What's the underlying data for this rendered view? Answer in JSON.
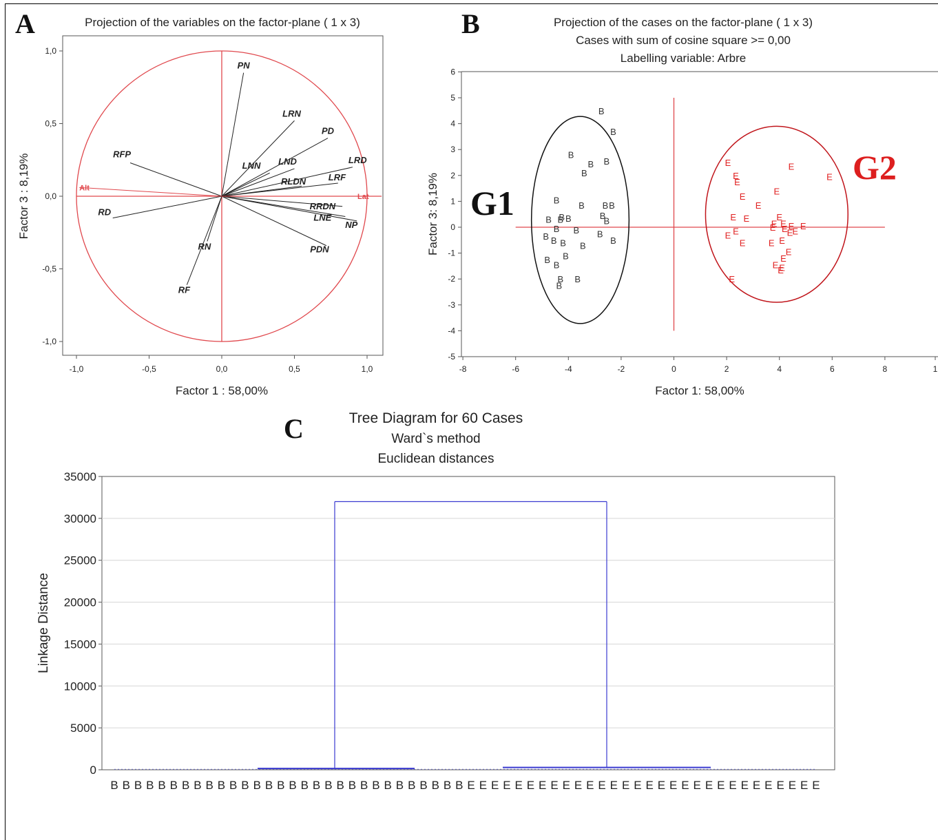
{
  "panels": {
    "a": {
      "letter": "A",
      "title": "Projection of the variables on the factor-plane (  1 x   3)",
      "xlabel": "Factor 1 : 58,00%",
      "ylabel": "Factor 3 :  8,19%",
      "x_ticks": [
        "-1,0",
        "-0,5",
        "0,0",
        "0,5",
        "1,0"
      ],
      "y_ticks": [
        "1,0",
        "0,5",
        "0,0",
        "-0,5",
        "-1,0"
      ]
    },
    "b": {
      "letter": "B",
      "title": "Projection of the cases on the factor-plane (  1 x   3)",
      "subtitle": "Cases with sum of cosine square >=  0,00",
      "subtitle2": "Labelling variable: Arbre",
      "xlabel": "Factor 1: 58,00%",
      "ylabel": "Factor 3:  8,19%",
      "group1": "G1",
      "group2": "G2",
      "x_ticks": [
        "-8",
        "-6",
        "-4",
        "-2",
        "0",
        "2",
        "4",
        "6",
        "8",
        "1"
      ],
      "y_ticks": [
        "6",
        "5",
        "4",
        "3",
        "2",
        "1",
        "0",
        "-1",
        "-2",
        "-3",
        "-4",
        "-5"
      ]
    },
    "c": {
      "letter": "C",
      "title": "Tree Diagram for 60 Cases",
      "subtitle": "Ward`s method",
      "subtitle2": "Euclidean distances",
      "ylabel": "Linkage Distance",
      "y_ticks": [
        "35000",
        "30000",
        "25000",
        "20000",
        "15000",
        "10000",
        "5000",
        "0"
      ]
    }
  },
  "chart_data": [
    {
      "type": "scatter",
      "title": "Projection of the variables on the factor-plane (  1 x   3)",
      "xlabel": "Factor 1 : 58,00%",
      "ylabel": "Factor 3 :  8,19%",
      "xlim": [
        -1.1,
        1.1
      ],
      "ylim": [
        -1.1,
        1.1
      ],
      "unit_circle": true,
      "vectors": [
        {
          "label": "PN",
          "x": 0.15,
          "y": 0.85
        },
        {
          "label": "LRN",
          "x": 0.5,
          "y": 0.52
        },
        {
          "label": "PD",
          "x": 0.73,
          "y": 0.4
        },
        {
          "label": "LRD",
          "x": 0.9,
          "y": 0.2
        },
        {
          "label": "LND",
          "x": 0.5,
          "y": 0.19
        },
        {
          "label": "LNN",
          "x": 0.33,
          "y": 0.16
        },
        {
          "label": "LRF",
          "x": 0.8,
          "y": 0.09
        },
        {
          "label": "RLDN",
          "x": 0.55,
          "y": 0.07
        },
        {
          "label": "RFP",
          "x": -0.63,
          "y": 0.23
        },
        {
          "label": "RD",
          "x": -0.75,
          "y": -0.15
        },
        {
          "label": "RRDN",
          "x": 0.83,
          "y": -0.07
        },
        {
          "label": "LNE",
          "x": 0.85,
          "y": -0.14
        },
        {
          "label": "NP",
          "x": 0.93,
          "y": -0.17
        },
        {
          "label": "PDN",
          "x": 0.72,
          "y": -0.34
        },
        {
          "label": "RN",
          "x": -0.1,
          "y": -0.31
        },
        {
          "label": "RF",
          "x": -0.24,
          "y": -0.61
        },
        {
          "label": "Alt",
          "x": -0.98,
          "y": 0.06,
          "supplementary": true
        },
        {
          "label": "Lat",
          "x": 1.0,
          "y": 0.0,
          "supplementary": true
        }
      ]
    },
    {
      "type": "scatter",
      "title": "Projection of the cases on the factor-plane (  1 x   3)",
      "xlabel": "Factor 1: 58,00%",
      "ylabel": "Factor 3:  8,19%",
      "xlim": [
        -8,
        10
      ],
      "ylim": [
        -5,
        6
      ],
      "series": [
        {
          "name": "B",
          "color": "#333333",
          "points": [
            [
              -2.75,
              4.5
            ],
            [
              -2.3,
              3.7
            ],
            [
              -3.9,
              2.8
            ],
            [
              -3.15,
              2.45
            ],
            [
              -2.55,
              2.55
            ],
            [
              -3.4,
              2.1
            ],
            [
              -4.45,
              1.05
            ],
            [
              -3.5,
              0.85
            ],
            [
              -2.6,
              0.85
            ],
            [
              -2.35,
              0.85
            ],
            [
              -4.25,
              0.4
            ],
            [
              -4.0,
              0.35
            ],
            [
              -4.3,
              0.3
            ],
            [
              -2.7,
              0.45
            ],
            [
              -2.55,
              0.25
            ],
            [
              -4.75,
              0.3
            ],
            [
              -4.45,
              -0.05
            ],
            [
              -3.7,
              -0.1
            ],
            [
              -2.8,
              -0.25
            ],
            [
              -4.85,
              -0.35
            ],
            [
              -4.55,
              -0.5
            ],
            [
              -4.2,
              -0.6
            ],
            [
              -3.45,
              -0.7
            ],
            [
              -2.3,
              -0.5
            ],
            [
              -4.1,
              -1.1
            ],
            [
              -4.8,
              -1.25
            ],
            [
              -4.45,
              -1.45
            ],
            [
              -4.3,
              -2.0
            ],
            [
              -3.65,
              -2.0
            ],
            [
              -4.35,
              -2.25
            ]
          ]
        },
        {
          "name": "E",
          "color": "#e02020",
          "points": [
            [
              2.05,
              2.5
            ],
            [
              4.45,
              2.35
            ],
            [
              2.35,
              2.0
            ],
            [
              2.4,
              1.75
            ],
            [
              5.9,
              1.95
            ],
            [
              3.9,
              1.4
            ],
            [
              2.6,
              1.2
            ],
            [
              3.2,
              0.85
            ],
            [
              2.25,
              0.4
            ],
            [
              2.75,
              0.35
            ],
            [
              4.0,
              0.4
            ],
            [
              3.8,
              0.15
            ],
            [
              4.15,
              0.15
            ],
            [
              4.45,
              0.05
            ],
            [
              4.9,
              0.05
            ],
            [
              3.75,
              0.0
            ],
            [
              4.2,
              -0.05
            ],
            [
              4.6,
              -0.15
            ],
            [
              4.4,
              -0.2
            ],
            [
              2.35,
              -0.15
            ],
            [
              2.05,
              -0.3
            ],
            [
              2.6,
              -0.6
            ],
            [
              3.7,
              -0.6
            ],
            [
              4.1,
              -0.5
            ],
            [
              4.35,
              -0.95
            ],
            [
              4.15,
              -1.2
            ],
            [
              3.85,
              -1.45
            ],
            [
              4.1,
              -1.55
            ],
            [
              4.05,
              -1.65
            ],
            [
              2.2,
              -2.0
            ]
          ]
        }
      ],
      "group_labels": [
        "G1",
        "G2"
      ]
    },
    {
      "type": "dendrogram",
      "title": "Tree Diagram for 60 Cases",
      "subtitle": "Ward`s method",
      "subtitle2": "Euclidean distances",
      "ylabel": "Linkage Distance",
      "ylim": [
        0,
        35000
      ],
      "leaves": [
        "B",
        "B",
        "B",
        "B",
        "B",
        "B",
        "B",
        "B",
        "B",
        "B",
        "B",
        "B",
        "B",
        "B",
        "B",
        "B",
        "B",
        "B",
        "B",
        "B",
        "B",
        "B",
        "B",
        "B",
        "B",
        "B",
        "B",
        "B",
        "B",
        "B",
        "E",
        "E",
        "E",
        "E",
        "E",
        "E",
        "E",
        "E",
        "E",
        "E",
        "E",
        "E",
        "E",
        "E",
        "E",
        "E",
        "E",
        "E",
        "E",
        "E",
        "E",
        "E",
        "E",
        "E",
        "E",
        "E",
        "E",
        "E",
        "E",
        "E"
      ],
      "top_merge_distance": 32000,
      "cluster_merge_distances": [
        150,
        280
      ]
    }
  ]
}
